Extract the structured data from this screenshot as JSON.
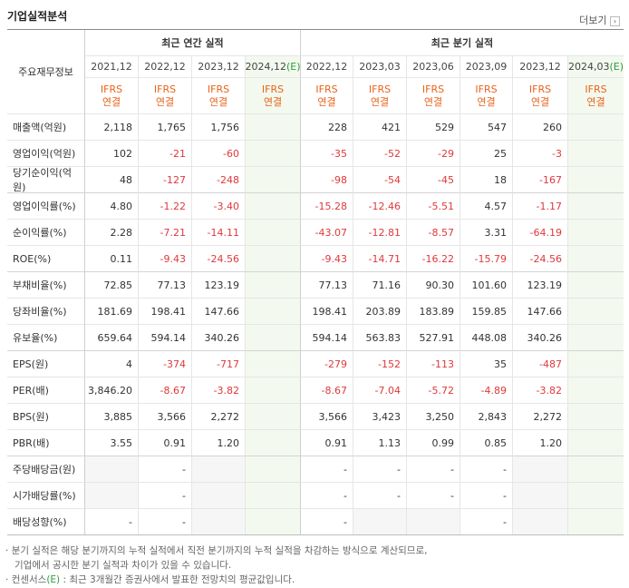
{
  "header": {
    "title": "기업실적분석",
    "more": "더보기"
  },
  "table": {
    "corner": "주요재무정보",
    "groups": [
      {
        "label": "최근 연간 실적",
        "periods": [
          {
            "date": "2021,12",
            "accounting": "IFRS",
            "basis": "연결"
          },
          {
            "date": "2022,12",
            "accounting": "IFRS",
            "basis": "연결"
          },
          {
            "date": "2023,12",
            "accounting": "IFRS",
            "basis": "연결"
          },
          {
            "date": "2024,12",
            "mark": "(E)",
            "accounting": "IFRS",
            "basis": "연결"
          }
        ]
      },
      {
        "label": "최근 분기 실적",
        "periods": [
          {
            "date": "2022,12",
            "accounting": "IFRS",
            "basis": "연결"
          },
          {
            "date": "2023,03",
            "accounting": "IFRS",
            "basis": "연결"
          },
          {
            "date": "2023,06",
            "accounting": "IFRS",
            "basis": "연결"
          },
          {
            "date": "2023,09",
            "accounting": "IFRS",
            "basis": "연결"
          },
          {
            "date": "2023,12",
            "accounting": "IFRS",
            "basis": "연결"
          },
          {
            "date": "2024,03",
            "mark": "(E)",
            "accounting": "IFRS",
            "basis": "연결"
          }
        ]
      }
    ],
    "rows": [
      {
        "label": "매출액(억원)",
        "values": [
          "2,118",
          "1,765",
          "1,756",
          null,
          "228",
          "421",
          "529",
          "547",
          "260",
          null
        ]
      },
      {
        "label": "영업이익(억원)",
        "values": [
          "102",
          "-21",
          "-60",
          null,
          "-35",
          "-52",
          "-29",
          "25",
          "-3",
          null
        ]
      },
      {
        "label": "당기순이익(억원)",
        "values": [
          "48",
          "-127",
          "-248",
          null,
          "-98",
          "-54",
          "-45",
          "18",
          "-167",
          null
        ]
      },
      {
        "label": "영업이익률(%)",
        "values": [
          "4.80",
          "-1.22",
          "-3.40",
          null,
          "-15.28",
          "-12.46",
          "-5.51",
          "4.57",
          "-1.17",
          null
        ]
      },
      {
        "label": "순이익률(%)",
        "values": [
          "2.28",
          "-7.21",
          "-14.11",
          null,
          "-43.07",
          "-12.81",
          "-8.57",
          "3.31",
          "-64.19",
          null
        ]
      },
      {
        "label": "ROE(%)",
        "values": [
          "0.11",
          "-9.43",
          "-24.56",
          null,
          "-9.43",
          "-14.71",
          "-16.22",
          "-15.79",
          "-24.56",
          null
        ]
      },
      {
        "label": "부채비율(%)",
        "values": [
          "72.85",
          "77.13",
          "123.19",
          null,
          "77.13",
          "71.16",
          "90.30",
          "101.60",
          "123.19",
          null
        ]
      },
      {
        "label": "당좌비율(%)",
        "values": [
          "181.69",
          "198.41",
          "147.66",
          null,
          "198.41",
          "203.89",
          "183.89",
          "159.85",
          "147.66",
          null
        ]
      },
      {
        "label": "유보율(%)",
        "values": [
          "659.64",
          "594.14",
          "340.26",
          null,
          "594.14",
          "563.83",
          "527.91",
          "448.08",
          "340.26",
          null
        ]
      },
      {
        "label": "EPS(원)",
        "values": [
          "4",
          "-374",
          "-717",
          null,
          "-279",
          "-152",
          "-113",
          "35",
          "-487",
          null
        ]
      },
      {
        "label": "PER(배)",
        "values": [
          "3,846.20",
          "-8.67",
          "-3.82",
          null,
          "-8.67",
          "-7.04",
          "-5.72",
          "-4.89",
          "-3.82",
          null
        ]
      },
      {
        "label": "BPS(원)",
        "values": [
          "3,885",
          "3,566",
          "2,272",
          null,
          "3,566",
          "3,423",
          "3,250",
          "2,843",
          "2,272",
          null
        ]
      },
      {
        "label": "PBR(배)",
        "values": [
          "3.55",
          "0.91",
          "1.20",
          null,
          "0.91",
          "1.13",
          "0.99",
          "0.85",
          "1.20",
          null
        ]
      },
      {
        "label": "주당배당금(원)",
        "values": [
          null,
          "-",
          null,
          null,
          "-",
          "-",
          "-",
          "-",
          null,
          null
        ]
      },
      {
        "label": "시가배당률(%)",
        "values": [
          null,
          "-",
          null,
          null,
          "-",
          "-",
          "-",
          "-",
          null,
          null
        ]
      },
      {
        "label": "배당성향(%)",
        "values": [
          "-",
          "-",
          null,
          null,
          "-",
          null,
          null,
          "-",
          null,
          null
        ]
      }
    ]
  },
  "notes": [
    {
      "lines": [
        "분기 실적은 해당 분기까지의 누적 실적에서 직전 분기까지의 누적 실적을 차감하는 방식으로 계산되므로,",
        "기업에서 공시한 분기 실적과 차이가 있을 수 있습니다."
      ]
    },
    {
      "parts": [
        "컨센서스",
        "(E)",
        " : 최근 3개월간 증권사에서 발표한 전망치의 평균값입니다."
      ]
    }
  ]
}
